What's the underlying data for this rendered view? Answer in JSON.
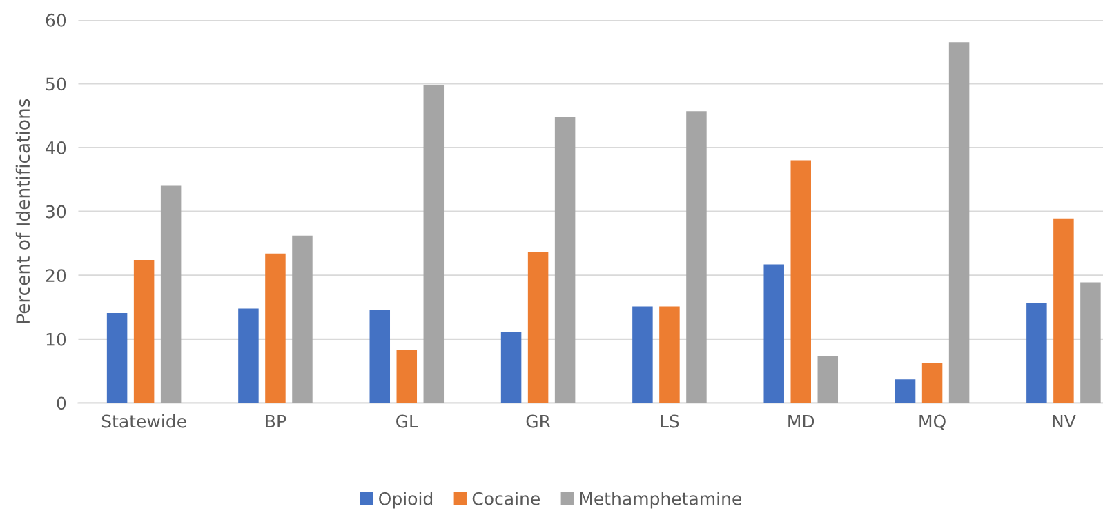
{
  "chart_data": {
    "type": "bar",
    "ylabel": "Percent of Identifications",
    "categories": [
      "Statewide",
      "BP",
      "GL",
      "GR",
      "LS",
      "MD",
      "MQ",
      "NV"
    ],
    "series": [
      {
        "name": "Opioid",
        "color": "#4472c4",
        "values": [
          14.1,
          14.8,
          14.6,
          11.1,
          15.1,
          21.7,
          3.7,
          15.6
        ]
      },
      {
        "name": "Cocaine",
        "color": "#ed7d31",
        "values": [
          22.4,
          23.4,
          8.3,
          23.7,
          15.1,
          38.0,
          6.3,
          28.9
        ]
      },
      {
        "name": "Methamphetamine",
        "color": "#a5a5a5",
        "values": [
          34.0,
          26.2,
          49.8,
          44.8,
          45.7,
          7.3,
          56.5,
          18.9
        ]
      }
    ],
    "ylim": [
      0,
      60
    ],
    "yticks": [
      0,
      10,
      20,
      30,
      40,
      50,
      60
    ],
    "grid": "y",
    "legend": "bottom"
  }
}
